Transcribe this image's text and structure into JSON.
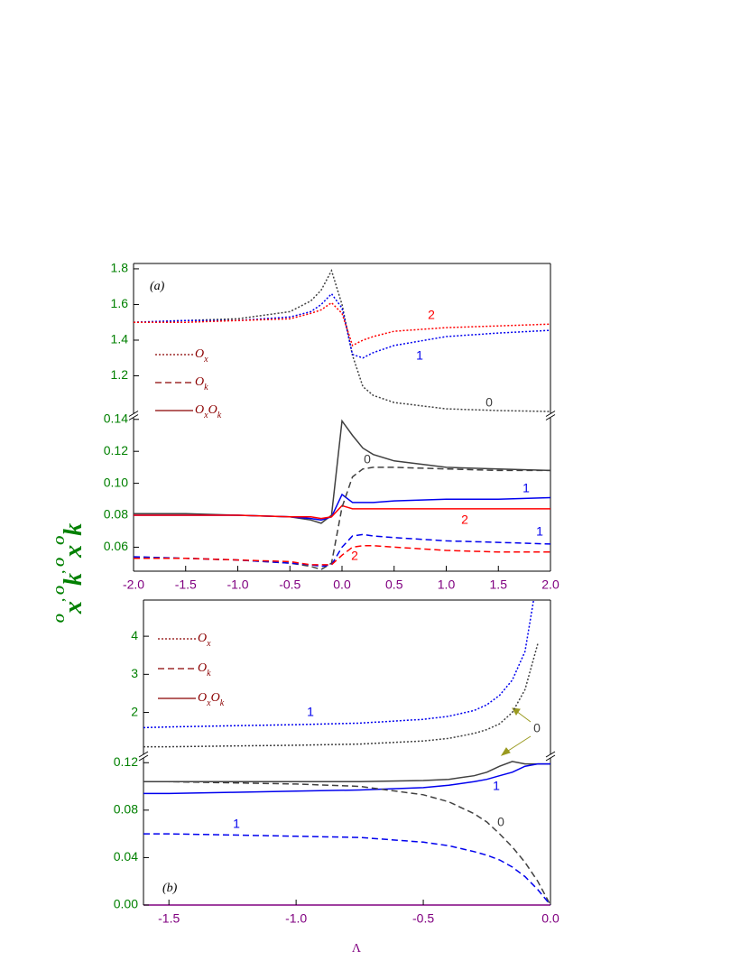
{
  "chart_data": [
    {
      "type": "line",
      "label": "(a)",
      "x": [
        -2,
        -1.5,
        -1,
        -0.5,
        -0.3,
        -0.2,
        -0.1,
        0,
        0.1,
        0.2,
        0.3,
        0.5,
        1,
        1.5,
        2
      ],
      "xlim": [
        -2,
        2
      ],
      "xticks": [
        {
          "value": -2,
          "label": "-2.0"
        },
        -1.5,
        {
          "value": -1,
          "label": "-1.0"
        },
        -0.5,
        {
          "value": 0,
          "label": "0.0"
        },
        0.5,
        {
          "value": 1,
          "label": "1.0"
        },
        1.5,
        {
          "value": 2,
          "label": "2.0"
        }
      ],
      "segments": [
        {
          "ylim": [
            0.99,
            1.83
          ],
          "yticks": [
            1.2,
            1.4,
            1.6,
            1.8
          ]
        },
        {
          "ylim": [
            0.045,
            0.141
          ],
          "yticks": [
            0.06,
            0.08,
            {
              "value": 0.1,
              "label": "0.10"
            },
            0.12,
            0.14
          ]
        }
      ],
      "series": [
        {
          "label": "0",
          "color": "#404040",
          "style": "dotted",
          "segment": 0,
          "values": [
            1.5,
            1.51,
            1.52,
            1.56,
            1.62,
            1.68,
            1.79,
            1.6,
            1.315,
            1.14,
            1.09,
            1.05,
            1.015,
            1.005,
            1.0
          ]
        },
        {
          "label": "1",
          "color": "#0000ee",
          "style": "dotted",
          "segment": 0,
          "values": [
            1.5,
            1.51,
            1.51,
            1.53,
            1.56,
            1.6,
            1.66,
            1.58,
            1.32,
            1.3,
            1.33,
            1.37,
            1.42,
            1.44,
            1.455
          ]
        },
        {
          "label": "2",
          "color": "#ff0000",
          "style": "dotted",
          "segment": 0,
          "values": [
            1.5,
            1.5,
            1.51,
            1.52,
            1.55,
            1.57,
            1.61,
            1.55,
            1.37,
            1.4,
            1.42,
            1.45,
            1.47,
            1.48,
            1.49
          ]
        },
        {
          "color": "#404040",
          "style": "solid",
          "segment": 1,
          "values": [
            0.081,
            0.081,
            0.08,
            0.079,
            0.077,
            0.075,
            0.08,
            0.139,
            0.13,
            0.122,
            0.118,
            0.114,
            0.11,
            0.109,
            0.108
          ]
        },
        {
          "label": "1",
          "color": "#0000ee",
          "style": "solid",
          "segment": 1,
          "values": [
            0.08,
            0.08,
            0.08,
            0.079,
            0.078,
            0.077,
            0.079,
            0.093,
            0.088,
            0.088,
            0.088,
            0.089,
            0.09,
            0.09,
            0.091
          ]
        },
        {
          "label": "2",
          "color": "#ff0000",
          "style": "solid",
          "segment": 1,
          "values": [
            0.08,
            0.08,
            0.08,
            0.079,
            0.079,
            0.078,
            0.079,
            0.086,
            0.084,
            0.084,
            0.084,
            0.084,
            0.084,
            0.084,
            0.084
          ]
        },
        {
          "label": "0",
          "color": "#404040",
          "style": "dashed",
          "segment": 1,
          "values": [
            0.054,
            0.053,
            0.052,
            0.05,
            0.048,
            0.046,
            0.05,
            0.085,
            0.104,
            0.109,
            0.11,
            0.11,
            0.109,
            0.108,
            0.108
          ]
        },
        {
          "label": "1",
          "color": "#0000ee",
          "style": "dashed",
          "segment": 1,
          "values": [
            0.054,
            0.053,
            0.052,
            0.05,
            0.049,
            0.048,
            0.049,
            0.06,
            0.067,
            0.068,
            0.067,
            0.066,
            0.064,
            0.063,
            0.062
          ]
        },
        {
          "label": "2",
          "color": "#ff0000",
          "style": "dashed",
          "segment": 1,
          "values": [
            0.053,
            0.053,
            0.052,
            0.051,
            0.049,
            0.049,
            0.049,
            0.055,
            0.06,
            0.061,
            0.061,
            0.06,
            0.058,
            0.057,
            0.057
          ]
        }
      ],
      "legend": [
        {
          "style": "dotted",
          "text": [
            {
              "text": "O"
            },
            {
              "text": "x",
              "sub": true
            }
          ]
        },
        {
          "style": "dashed",
          "text": [
            {
              "text": "O"
            },
            {
              "text": "k",
              "sub": true
            }
          ]
        },
        {
          "style": "solid",
          "text": [
            {
              "text": "O"
            },
            {
              "text": "x",
              "sub": true
            },
            {
              "text": "O"
            },
            {
              "text": "k",
              "sub": true
            }
          ]
        }
      ],
      "legend_color": "#8b0000"
    },
    {
      "type": "line",
      "label": "(b)",
      "xlabel": "Λ",
      "x": [
        -1.6,
        -1.5,
        -1.25,
        -1,
        -0.75,
        -0.5,
        -0.4,
        -0.3,
        -0.25,
        -0.2,
        -0.15,
        -0.1,
        -0.05,
        0
      ],
      "xlim": [
        -1.6,
        0
      ],
      "xticks": [
        -1.5,
        {
          "value": -1,
          "label": "-1.0"
        },
        -0.5,
        {
          "value": 0,
          "label": "0.0"
        }
      ],
      "segments": [
        {
          "ylim": [
            0.9,
            4.95
          ],
          "yticks": [
            2,
            3,
            4
          ]
        },
        {
          "ylim": [
            0,
            0.124
          ],
          "yticks": [
            {
              "value": 0,
              "label": "0.00"
            },
            0.04,
            0.08,
            0.12
          ]
        }
      ],
      "series": [
        {
          "label": "1",
          "color": "#0000ee",
          "style": "dotted",
          "segment": 0,
          "values": [
            1.6,
            1.62,
            1.65,
            1.68,
            1.72,
            1.82,
            1.9,
            2.05,
            2.2,
            2.45,
            2.85,
            3.6,
            5.6,
            null
          ]
        },
        {
          "label": "0",
          "color": "#404040",
          "style": "dotted",
          "segment": 0,
          "values": [
            1.1,
            1.1,
            1.12,
            1.14,
            1.17,
            1.25,
            1.32,
            1.45,
            1.55,
            1.7,
            2.0,
            2.6,
            3.8,
            null
          ]
        },
        {
          "color": "#404040",
          "style": "solid",
          "segment": 1,
          "values": [
            0.104,
            0.104,
            0.104,
            0.104,
            0.104,
            0.105,
            0.106,
            0.109,
            0.112,
            0.117,
            0.121,
            0.119,
            0.119,
            0.119
          ]
        },
        {
          "label": "1",
          "color": "#0000ee",
          "style": "solid",
          "segment": 1,
          "values": [
            0.094,
            0.094,
            0.095,
            0.096,
            0.097,
            0.099,
            0.101,
            0.104,
            0.106,
            0.109,
            0.112,
            0.117,
            0.119,
            0.119
          ]
        },
        {
          "label": "0",
          "color": "#404040",
          "style": "dashed",
          "segment": 1,
          "values": [
            0.104,
            0.104,
            0.103,
            0.102,
            0.1,
            0.093,
            0.087,
            0.077,
            0.07,
            0.06,
            0.049,
            0.036,
            0.02,
            0.0
          ]
        },
        {
          "label": "1",
          "color": "#0000ee",
          "style": "dashed",
          "segment": 1,
          "values": [
            0.06,
            0.06,
            0.059,
            0.058,
            0.057,
            0.053,
            0.05,
            0.045,
            0.042,
            0.038,
            0.032,
            0.024,
            0.013,
            0.0
          ]
        }
      ],
      "legend": [
        {
          "style": "dotted",
          "text": [
            {
              "text": "O"
            },
            {
              "text": "x",
              "sub": true
            }
          ]
        },
        {
          "style": "dashed",
          "text": [
            {
              "text": "O"
            },
            {
              "text": "k",
              "sub": true
            }
          ]
        },
        {
          "style": "solid",
          "text": [
            {
              "text": "O"
            },
            {
              "text": "x",
              "sub": true
            },
            {
              "text": "O"
            },
            {
              "text": "k",
              "sub": true
            }
          ]
        }
      ],
      "legend_color": "#8b0000"
    }
  ],
  "ylabel": [
    {
      "text": "O"
    },
    {
      "text": "x",
      "sub": true
    },
    {
      "text": ", "
    },
    {
      "text": "O"
    },
    {
      "text": "k",
      "sub": true
    },
    {
      "text": ", "
    },
    {
      "text": "O"
    },
    {
      "text": "x",
      "sub": true
    },
    {
      "text": "O"
    },
    {
      "text": "k",
      "sub": true
    }
  ],
  "ylabel_color": "#008000",
  "xlabel_color": "#800080"
}
